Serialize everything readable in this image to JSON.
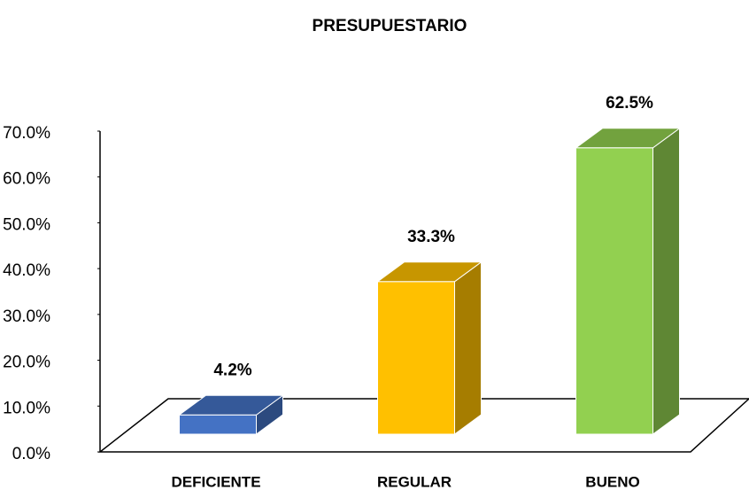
{
  "chart_data": {
    "type": "bar3d",
    "title": "PRESUPUESTARIO",
    "categories": [
      "DEFICIENTE",
      "REGULAR",
      "BUENO"
    ],
    "values": [
      4.2,
      33.3,
      62.5
    ],
    "value_labels": [
      "4.2%",
      "33.3%",
      "62.5%"
    ],
    "colors": [
      "#4472c4",
      "#ffc000",
      "#92d050"
    ],
    "ylim": [
      0,
      70
    ],
    "yticks": [
      {
        "value": 0,
        "label": "0.0%"
      },
      {
        "value": 10,
        "label": "10.0%"
      },
      {
        "value": 20,
        "label": "20.0%"
      },
      {
        "value": 30,
        "label": "30.0%"
      },
      {
        "value": 40,
        "label": "40.0%"
      },
      {
        "value": 50,
        "label": "50.0%"
      },
      {
        "value": 60,
        "label": "60.0%"
      },
      {
        "value": 70,
        "label": "70.0%"
      }
    ],
    "grid": false
  }
}
